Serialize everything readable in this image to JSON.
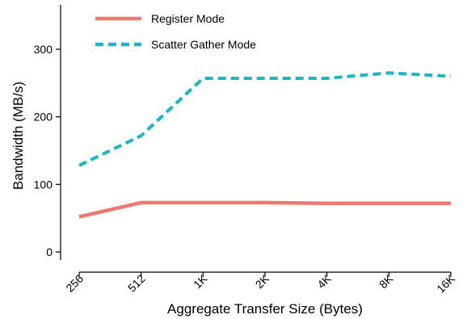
{
  "chart_data": {
    "type": "line",
    "title": "",
    "xlabel": "Aggregate Transfer Size (Bytes)",
    "ylabel": "Bandwidth (MB/s)",
    "categories": [
      "256",
      "512",
      "1K",
      "2K",
      "4K",
      "8K",
      "16K"
    ],
    "yticks": [
      0,
      100,
      200,
      300
    ],
    "ylim": [
      -10,
      370
    ],
    "grid": false,
    "legend_position": "top-left",
    "series": [
      {
        "name": "Register Mode",
        "style": "solid",
        "color": "#f07870",
        "values": [
          52,
          73,
          73,
          73,
          72,
          72,
          72
        ]
      },
      {
        "name": "Scatter Gather Mode",
        "style": "dashed",
        "color": "#1ab8c4",
        "values": [
          128,
          172,
          257,
          257,
          257,
          265,
          260
        ]
      }
    ]
  }
}
